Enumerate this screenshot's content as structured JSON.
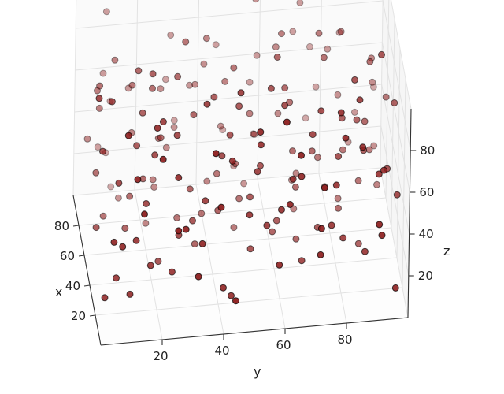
{
  "chart_data": {
    "type": "scatter",
    "projection": "3d",
    "title": "",
    "xlabel": "x",
    "ylabel": "y",
    "zlabel": "z",
    "xlim": [
      0,
      100
    ],
    "ylim": [
      0,
      100
    ],
    "zlim": [
      0,
      100
    ],
    "xticks": [
      "20",
      "40",
      "60",
      "80"
    ],
    "yticks": [
      "20",
      "40",
      "60",
      "80"
    ],
    "zticks": [
      "20",
      "40",
      "60",
      "80"
    ],
    "grid": true,
    "legend": "none",
    "marker_color": "#8b1a1a",
    "marker_edge_color": "#000000",
    "points": [
      [
        12,
        5,
        40
      ],
      [
        30,
        8,
        55
      ],
      [
        8,
        12,
        72
      ],
      [
        55,
        14,
        30
      ],
      [
        70,
        10,
        85
      ],
      [
        22,
        18,
        20
      ],
      [
        85,
        16,
        60
      ],
      [
        45,
        20,
        95
      ],
      [
        38,
        22,
        10
      ],
      [
        64,
        24,
        50
      ],
      [
        15,
        26,
        66
      ],
      [
        78,
        28,
        35
      ],
      [
        90,
        30,
        80
      ],
      [
        5,
        32,
        25
      ],
      [
        50,
        34,
        70
      ],
      [
        27,
        36,
        45
      ],
      [
        60,
        38,
        15
      ],
      [
        72,
        40,
        90
      ],
      [
        35,
        42,
        60
      ],
      [
        18,
        44,
        5
      ],
      [
        82,
        46,
        40
      ],
      [
        42,
        48,
        78
      ],
      [
        58,
        50,
        22
      ],
      [
        10,
        52,
        88
      ],
      [
        68,
        54,
        55
      ],
      [
        25,
        56,
        32
      ],
      [
        88,
        58,
        68
      ],
      [
        48,
        60,
        12
      ],
      [
        33,
        62,
        83
      ],
      [
        76,
        64,
        48
      ],
      [
        14,
        66,
        62
      ],
      [
        54,
        68,
        28
      ],
      [
        92,
        70,
        75
      ],
      [
        6,
        72,
        42
      ],
      [
        40,
        74,
        18
      ],
      [
        66,
        76,
        92
      ],
      [
        20,
        78,
        52
      ],
      [
        80,
        80,
        8
      ],
      [
        46,
        82,
        65
      ],
      [
        62,
        84,
        38
      ],
      [
        28,
        86,
        86
      ],
      [
        86,
        88,
        24
      ],
      [
        52,
        90,
        58
      ],
      [
        9,
        92,
        34
      ],
      [
        74,
        94,
        72
      ],
      [
        36,
        96,
        46
      ],
      [
        58,
        4,
        82
      ],
      [
        24,
        7,
        14
      ],
      [
        94,
        11,
        48
      ],
      [
        44,
        15,
        62
      ],
      [
        16,
        19,
        90
      ],
      [
        70,
        23,
        26
      ],
      [
        32,
        27,
        74
      ],
      [
        84,
        31,
        40
      ],
      [
        50,
        35,
        8
      ],
      [
        4,
        39,
        58
      ],
      [
        62,
        43,
        32
      ],
      [
        26,
        47,
        96
      ],
      [
        88,
        51,
        16
      ],
      [
        40,
        55,
        50
      ],
      [
        12,
        59,
        22
      ],
      [
        76,
        63,
        80
      ],
      [
        56,
        67,
        44
      ],
      [
        30,
        71,
        70
      ],
      [
        96,
        75,
        30
      ],
      [
        18,
        79,
        88
      ],
      [
        66,
        83,
        12
      ],
      [
        48,
        87,
        62
      ],
      [
        8,
        91,
        40
      ],
      [
        80,
        95,
        56
      ],
      [
        34,
        3,
        68
      ],
      [
        60,
        6,
        18
      ],
      [
        90,
        9,
        94
      ],
      [
        20,
        13,
        34
      ],
      [
        46,
        17,
        76
      ],
      [
        72,
        21,
        4
      ],
      [
        2,
        25,
        50
      ],
      [
        54,
        29,
        86
      ],
      [
        38,
        33,
        28
      ],
      [
        78,
        37,
        64
      ],
      [
        14,
        41,
        12
      ],
      [
        92,
        45,
        72
      ],
      [
        62,
        49,
        36
      ],
      [
        28,
        53,
        56
      ],
      [
        84,
        57,
        98
      ],
      [
        44,
        61,
        20
      ],
      [
        6,
        65,
        78
      ],
      [
        70,
        69,
        6
      ],
      [
        52,
        73,
        46
      ],
      [
        24,
        77,
        30
      ],
      [
        88,
        81,
        68
      ],
      [
        36,
        85,
        90
      ],
      [
        60,
        89,
        24
      ],
      [
        16,
        93,
        60
      ],
      [
        96,
        97,
        42
      ],
      [
        42,
        2,
        26
      ],
      [
        68,
        5,
        64
      ],
      [
        10,
        9,
        92
      ],
      [
        82,
        13,
        10
      ],
      [
        30,
        17,
        44
      ],
      [
        56,
        21,
        80
      ],
      [
        22,
        25,
        16
      ],
      [
        94,
        29,
        56
      ],
      [
        48,
        33,
        36
      ],
      [
        4,
        37,
        84
      ],
      [
        74,
        41,
        20
      ],
      [
        40,
        45,
        66
      ],
      [
        64,
        49,
        4
      ],
      [
        18,
        53,
        76
      ],
      [
        86,
        57,
        32
      ],
      [
        50,
        61,
        94
      ],
      [
        32,
        65,
        48
      ],
      [
        78,
        69,
        14
      ],
      [
        8,
        73,
        60
      ],
      [
        58,
        77,
        86
      ],
      [
        26,
        81,
        22
      ],
      [
        90,
        85,
        74
      ],
      [
        44,
        89,
        50
      ],
      [
        66,
        93,
        34
      ],
      [
        12,
        97,
        6
      ],
      [
        76,
        2,
        44
      ],
      [
        36,
        6,
        90
      ],
      [
        96,
        10,
        22
      ],
      [
        4,
        14,
        58
      ],
      [
        52,
        18,
        40
      ],
      [
        28,
        22,
        84
      ],
      [
        80,
        26,
        62
      ],
      [
        60,
        30,
        14
      ],
      [
        14,
        34,
        34
      ],
      [
        92,
        38,
        96
      ],
      [
        46,
        42,
        26
      ],
      [
        70,
        46,
        70
      ],
      [
        22,
        50,
        40
      ],
      [
        84,
        54,
        10
      ],
      [
        38,
        58,
        88
      ],
      [
        10,
        62,
        52
      ],
      [
        58,
        66,
        66
      ],
      [
        74,
        70,
        20
      ],
      [
        34,
        74,
        78
      ],
      [
        94,
        78,
        46
      ],
      [
        54,
        82,
        16
      ],
      [
        16,
        86,
        72
      ],
      [
        86,
        90,
        38
      ],
      [
        40,
        94,
        98
      ],
      [
        64,
        98,
        60
      ],
      [
        20,
        3,
        8
      ],
      [
        88,
        8,
        66
      ],
      [
        48,
        12,
        20
      ],
      [
        72,
        16,
        48
      ],
      [
        6,
        20,
        82
      ],
      [
        56,
        24,
        56
      ],
      [
        32,
        28,
        26
      ],
      [
        94,
        32,
        36
      ],
      [
        26,
        36,
        92
      ],
      [
        80,
        40,
        72
      ],
      [
        2,
        44,
        14
      ],
      [
        62,
        48,
        82
      ],
      [
        42,
        52,
        34
      ],
      [
        90,
        56,
        54
      ],
      [
        18,
        60,
        44
      ],
      [
        68,
        64,
        92
      ],
      [
        50,
        68,
        6
      ],
      [
        8,
        72,
        28
      ],
      [
        96,
        76,
        64
      ],
      [
        36,
        80,
        54
      ],
      [
        74,
        84,
        86
      ],
      [
        24,
        88,
        16
      ],
      [
        58,
        92,
        82
      ],
      [
        82,
        96,
        24
      ],
      [
        46,
        99,
        70
      ],
      [
        28,
        1,
        98
      ],
      [
        66,
        4,
        74
      ],
      [
        14,
        8,
        36
      ],
      [
        98,
        12,
        4
      ],
      [
        52,
        16,
        92
      ],
      [
        34,
        20,
        64
      ],
      [
        76,
        24,
        18
      ],
      [
        8,
        28,
        46
      ],
      [
        60,
        32,
        98
      ],
      [
        86,
        36,
        58
      ],
      [
        44,
        40,
        82
      ],
      [
        20,
        44,
        68
      ],
      [
        96,
        48,
        28
      ],
      [
        38,
        52,
        12
      ],
      [
        72,
        56,
        42
      ],
      [
        4,
        60,
        96
      ],
      [
        54,
        64,
        76
      ],
      [
        30,
        68,
        10
      ],
      [
        90,
        72,
        90
      ],
      [
        64,
        76,
        34
      ],
      [
        12,
        80,
        80
      ],
      [
        82,
        84,
        50
      ],
      [
        46,
        88,
        4
      ],
      [
        22,
        92,
        54
      ],
      [
        70,
        96,
        14
      ],
      [
        32,
        99,
        36
      ],
      [
        56,
        3,
        42
      ],
      [
        92,
        7,
        28
      ],
      [
        18,
        11,
        10
      ],
      [
        62,
        15,
        78
      ]
    ]
  }
}
